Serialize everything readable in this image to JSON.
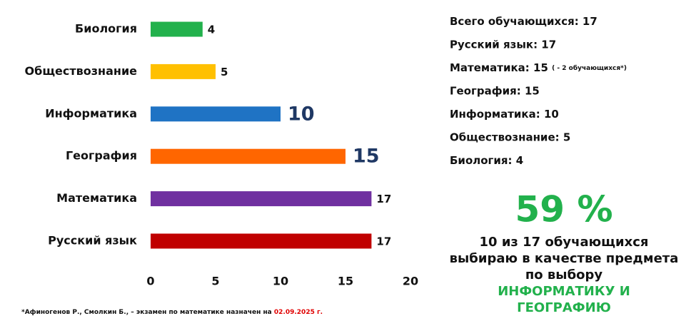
{
  "chart_data": {
    "type": "bar",
    "orientation": "horizontal",
    "categories": [
      "Биология",
      "Обществознание",
      "Информатика",
      "География",
      "Математика",
      "Русский язык"
    ],
    "values": [
      4,
      5,
      10,
      15,
      17,
      17
    ],
    "colors": [
      "#22b14c",
      "#ffc000",
      "#1f73c4",
      "#ff6600",
      "#7030a0",
      "#c00000"
    ],
    "xlim": [
      0,
      20
    ],
    "xticks": [
      0,
      5,
      10,
      15,
      20
    ],
    "grid": true
  },
  "summary": {
    "lines": [
      "Всего обучающихся: 17",
      "Русский язык: 17",
      "Математика: 15",
      "География: 15",
      "Информатика: 10",
      "Обществознание: 5",
      "Биология: 4"
    ],
    "math_note": "( - 2 обучающихся*)",
    "percent": "59 %",
    "text": [
      "10 из 17 обучающихся",
      "выбираю в качестве предмета",
      "по выбору"
    ],
    "highlight": [
      "ИНФОРМАТИКУ И",
      "ГЕОГРАФИЮ"
    ]
  },
  "footnote": {
    "text": "*Афиногенов Р., Смолкин Б., – экзамен по математике назначен на ",
    "date": "02.09.2025 г."
  }
}
